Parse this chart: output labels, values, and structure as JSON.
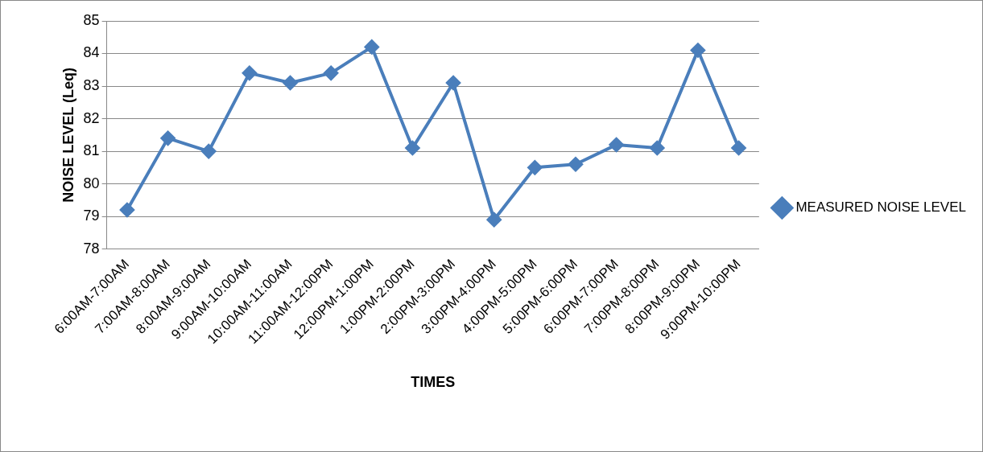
{
  "chart_data": {
    "type": "line",
    "xlabel": "TIMES",
    "ylabel": "NOISE LEVEL (Leq)",
    "categories": [
      "6:00AM-7:00AM",
      "7:00AM-8:00AM",
      "8:00AM-9:00AM",
      "9:00AM-10:00AM",
      "10:00AM-11:00AM",
      "11:00AM-12:00PM",
      "12:00PM-1:00PM",
      "1:00PM-2:00PM",
      "2:00PM-3:00PM",
      "3:00PM-4:00PM",
      "4:00PM-5:00PM",
      "5:00PM-6:00PM",
      "6:00PM-7:00PM",
      "7:00PM-8:00PM",
      "8:00PM-9:00PM",
      "9:00PM-10:00PM"
    ],
    "series": [
      {
        "name": "MEASURED NOISE LEVEL",
        "color": "#4a7ebb",
        "values": [
          79.2,
          81.4,
          81.0,
          83.4,
          83.1,
          83.4,
          84.2,
          81.1,
          83.1,
          78.9,
          80.5,
          80.6,
          81.2,
          81.1,
          84.1,
          81.1
        ]
      }
    ],
    "ylim": [
      78,
      85
    ],
    "yticks": [
      78,
      79,
      80,
      81,
      82,
      83,
      84,
      85
    ],
    "grid": "y",
    "legend": "right",
    "marker": "diamond",
    "line_style": "solid"
  }
}
